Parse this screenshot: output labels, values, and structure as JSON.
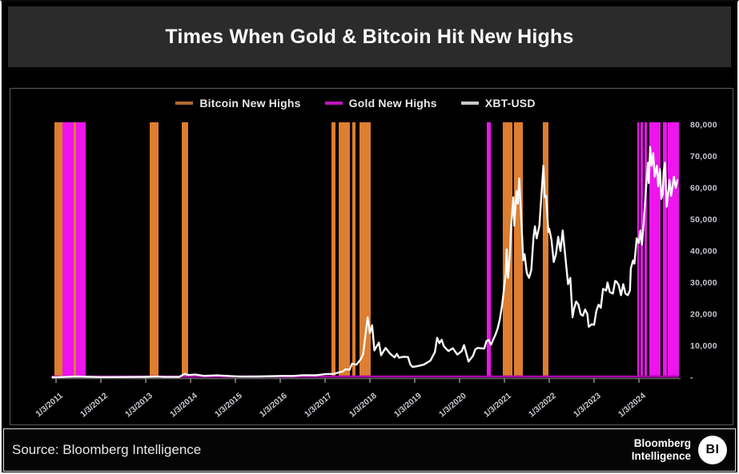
{
  "title": "Times When Gold & Bitcoin Hit New Highs",
  "footer": {
    "source_text": "Source: Bloomberg Intelligence",
    "brand_line1": "Bloomberg",
    "brand_line2": "Intelligence",
    "brand_badge": "BI"
  },
  "colors": {
    "bitcoin": "#DD7E30",
    "gold": "#EE14EE",
    "price_line": "#FAFAFA",
    "baseline_gold": "#AA00AA",
    "axis": "#5a5a5a",
    "tick": "#8a8a8a",
    "tick_label": "#c6c6ce",
    "legend_bitcoin_swatch": "#B4682D",
    "legend_gold_swatch": "#C014C0",
    "legend_price_swatch": "#C8C8C8"
  },
  "chart_data": {
    "type": "line+event-bars",
    "title": "Times When Gold & Bitcoin Hit New Highs",
    "legend": [
      {
        "label": "Bitcoin New Highs",
        "color_key": "bitcoin"
      },
      {
        "label": "Gold New Highs",
        "color_key": "gold"
      },
      {
        "label": "XBT-USD",
        "color_key": "price_line"
      }
    ],
    "x_axis": {
      "tick_years": [
        2011,
        2012,
        2013,
        2014,
        2015,
        2016,
        2017,
        2018,
        2019,
        2020,
        2021,
        2022,
        2023,
        2024
      ],
      "tick_labels": [
        "1/3/2011",
        "1/3/2012",
        "1/3/2013",
        "1/3/2014",
        "1/3/2015",
        "1/3/2016",
        "1/3/2017",
        "1/3/2018",
        "1/3/2019",
        "1/3/2020",
        "1/3/2021",
        "1/3/2022",
        "1/3/2023",
        "1/3/2024"
      ]
    },
    "y_axis": {
      "min": 0,
      "max": 80000,
      "tick_values": [
        80000,
        70000,
        60000,
        50000,
        40000,
        30000,
        20000,
        10000,
        0
      ],
      "tick_labels": [
        "80,000",
        "70,000",
        "60,000",
        "50,000",
        "40,000",
        "30,000",
        "20,000",
        "10,000",
        "-"
      ]
    },
    "bitcoin_new_highs_bars": [
      [
        2010.964,
        2011.161
      ],
      [
        2011.375,
        2011.446
      ],
      [
        2013.089,
        2013.286
      ],
      [
        2013.804,
        2013.946
      ],
      [
        2017.143,
        2017.232
      ],
      [
        2017.304,
        2017.554
      ],
      [
        2017.607,
        2017.679
      ],
      [
        2017.768,
        2018.018
      ],
      [
        2020.964,
        2021.179
      ],
      [
        2021.214,
        2021.411
      ],
      [
        2021.857,
        2021.982
      ]
    ],
    "gold_new_highs_bars": [
      [
        2011.143,
        2011.393
      ],
      [
        2011.446,
        2011.661
      ],
      [
        2020.607,
        2020.696
      ],
      [
        2023.964,
        2024.0
      ],
      [
        2024.036,
        2024.089
      ],
      [
        2024.125,
        2024.179
      ],
      [
        2024.232,
        2024.482
      ],
      [
        2024.536,
        2024.625
      ],
      [
        2024.643,
        2024.893
      ]
    ],
    "xbt_usd_series": [
      [
        2010.92,
        60
      ],
      [
        2011.0,
        300
      ],
      [
        2011.45,
        2500
      ],
      [
        2012.0,
        500
      ],
      [
        2012.5,
        700
      ],
      [
        2013.0,
        1300
      ],
      [
        2013.27,
        2300
      ],
      [
        2013.4,
        1000
      ],
      [
        2013.75,
        1300
      ],
      [
        2013.87,
        11000
      ],
      [
        2013.95,
        7000
      ],
      [
        2014.1,
        8500
      ],
      [
        2014.3,
        4500
      ],
      [
        2014.6,
        6000
      ],
      [
        2015.0,
        3100
      ],
      [
        2015.1,
        2200
      ],
      [
        2015.5,
        2500
      ],
      [
        2015.9,
        3700
      ],
      [
        2016.0,
        4300
      ],
      [
        2016.3,
        4200
      ],
      [
        2016.5,
        6700
      ],
      [
        2016.8,
        6300
      ],
      [
        2017.0,
        9900
      ],
      [
        2017.2,
        11000
      ],
      [
        2017.4,
        19000
      ],
      [
        2017.45,
        25000
      ],
      [
        2017.55,
        24000
      ],
      [
        2017.6,
        43000
      ],
      [
        2017.7,
        40000
      ],
      [
        2017.8,
        58000
      ],
      [
        2017.85,
        74000
      ],
      [
        2017.95,
        190000
      ],
      [
        2018.0,
        140000
      ],
      [
        2018.05,
        165000
      ],
      [
        2018.1,
        85000
      ],
      [
        2018.2,
        110000
      ],
      [
        2018.25,
        70000
      ],
      [
        2018.35,
        93000
      ],
      [
        2018.45,
        75000
      ],
      [
        2018.55,
        63000
      ],
      [
        2018.6,
        74000
      ],
      [
        2018.65,
        62000
      ],
      [
        2018.75,
        65000
      ],
      [
        2018.85,
        64000
      ],
      [
        2018.9,
        41000
      ],
      [
        2018.95,
        33000
      ],
      [
        2019.05,
        35000
      ],
      [
        2019.2,
        40000
      ],
      [
        2019.35,
        53000
      ],
      [
        2019.45,
        80000
      ],
      [
        2019.5,
        125000
      ],
      [
        2019.55,
        108000
      ],
      [
        2019.6,
        119000
      ],
      [
        2019.65,
        98000
      ],
      [
        2019.75,
        83000
      ],
      [
        2019.85,
        92000
      ],
      [
        2019.95,
        72000
      ],
      [
        2020.05,
        83000
      ],
      [
        2020.1,
        102000
      ],
      [
        2020.2,
        50000
      ],
      [
        2020.3,
        68000
      ],
      [
        2020.35,
        88000
      ],
      [
        2020.4,
        93000
      ],
      [
        2020.55,
        91000
      ],
      [
        2020.6,
        115000
      ],
      [
        2020.65,
        118000
      ],
      [
        2020.7,
        103000
      ],
      [
        2020.8,
        135000
      ],
      [
        2020.85,
        155000
      ],
      [
        2020.9,
        185000
      ],
      [
        2020.95,
        230000
      ],
      [
        2021.0,
        290000
      ],
      [
        2021.03,
        330000
      ],
      [
        2021.05,
        405000
      ],
      [
        2021.08,
        315000
      ],
      [
        2021.12,
        385000
      ],
      [
        2021.15,
        480000
      ],
      [
        2021.2,
        570000
      ],
      [
        2021.22,
        480000
      ],
      [
        2021.27,
        590000
      ],
      [
        2021.3,
        550000
      ],
      [
        2021.33,
        630000
      ],
      [
        2021.38,
        490000
      ],
      [
        2021.42,
        370000
      ],
      [
        2021.45,
        390000
      ],
      [
        2021.5,
        330000
      ],
      [
        2021.55,
        315000
      ],
      [
        2021.6,
        340000
      ],
      [
        2021.65,
        445000
      ],
      [
        2021.68,
        478000
      ],
      [
        2021.72,
        440000
      ],
      [
        2021.78,
        480000
      ],
      [
        2021.87,
        670000
      ],
      [
        2021.9,
        570000
      ],
      [
        2021.93,
        575000
      ],
      [
        2021.98,
        460000
      ],
      [
        2022.0,
        470000
      ],
      [
        2022.05,
        435000
      ],
      [
        2022.1,
        365000
      ],
      [
        2022.15,
        390000
      ],
      [
        2022.2,
        445000
      ],
      [
        2022.25,
        400000
      ],
      [
        2022.3,
        465000
      ],
      [
        2022.35,
        395000
      ],
      [
        2022.42,
        295000
      ],
      [
        2022.47,
        315000
      ],
      [
        2022.52,
        190000
      ],
      [
        2022.55,
        215000
      ],
      [
        2022.6,
        240000
      ],
      [
        2022.65,
        230000
      ],
      [
        2022.7,
        200000
      ],
      [
        2022.75,
        195000
      ],
      [
        2022.8,
        215000
      ],
      [
        2022.85,
        200000
      ],
      [
        2022.88,
        160000
      ],
      [
        2022.95,
        168000
      ],
      [
        2023.0,
        166000
      ],
      [
        2023.05,
        210000
      ],
      [
        2023.1,
        230000
      ],
      [
        2023.15,
        220000
      ],
      [
        2023.2,
        280000
      ],
      [
        2023.27,
        275000
      ],
      [
        2023.3,
        300000
      ],
      [
        2023.35,
        270000
      ],
      [
        2023.42,
        265000
      ],
      [
        2023.47,
        305000
      ],
      [
        2023.5,
        303000
      ],
      [
        2023.55,
        292000
      ],
      [
        2023.6,
        260000
      ],
      [
        2023.65,
        295000
      ],
      [
        2023.7,
        265000
      ],
      [
        2023.75,
        260000
      ],
      [
        2023.8,
        275000
      ],
      [
        2023.82,
        345000
      ],
      [
        2023.87,
        370000
      ],
      [
        2023.9,
        360000
      ],
      [
        2023.95,
        440000
      ],
      [
        2024.0,
        425000
      ],
      [
        2024.03,
        465000
      ],
      [
        2024.07,
        420000
      ],
      [
        2024.12,
        520000
      ],
      [
        2024.17,
        620000
      ],
      [
        2024.2,
        680000
      ],
      [
        2024.22,
        615000
      ],
      [
        2024.25,
        730000
      ],
      [
        2024.28,
        670000
      ],
      [
        2024.32,
        710000
      ],
      [
        2024.35,
        635000
      ],
      [
        2024.4,
        670000
      ],
      [
        2024.43,
        605000
      ],
      [
        2024.47,
        660000
      ],
      [
        2024.5,
        565000
      ],
      [
        2024.53,
        580000
      ],
      [
        2024.55,
        650000
      ],
      [
        2024.58,
        680000
      ],
      [
        2024.62,
        540000
      ],
      [
        2024.65,
        580000
      ],
      [
        2024.68,
        625000
      ],
      [
        2024.72,
        575000
      ],
      [
        2024.75,
        605000
      ],
      [
        2024.78,
        635000
      ],
      [
        2024.82,
        600000
      ],
      [
        2024.86,
        625000
      ]
    ],
    "series_value_divisor": 10,
    "layout_hints": {
      "legend_position": "top-center",
      "grid": "off",
      "y_axis_side": "right"
    }
  }
}
